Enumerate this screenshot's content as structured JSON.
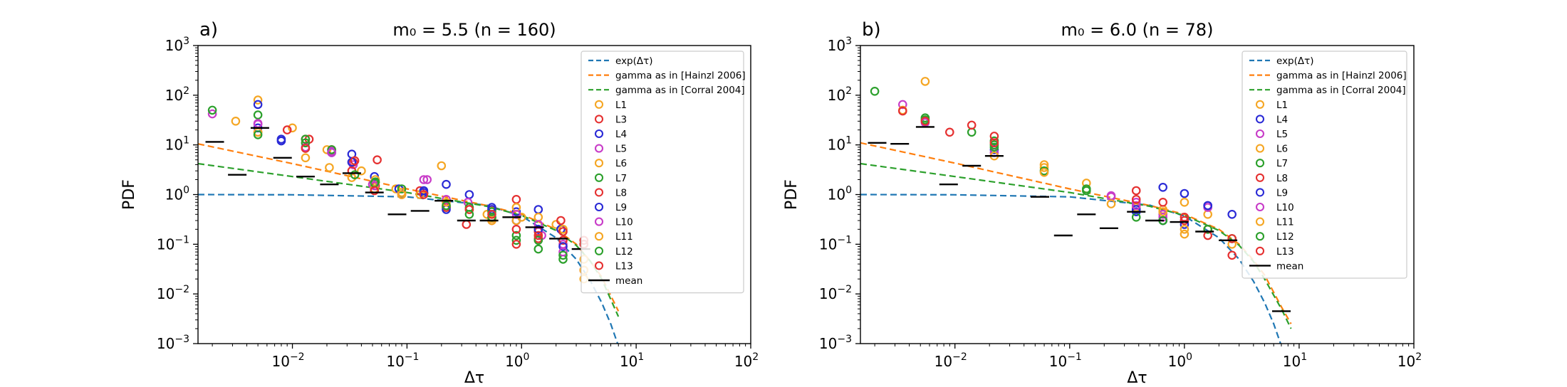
{
  "figure": {
    "panels": [
      {
        "letter": "a)",
        "title": "m₀ = 5.5 (n = 160)"
      },
      {
        "letter": "b)",
        "title": "m₀ = 6.0 (n = 78)"
      }
    ]
  },
  "colors": {
    "exp": "#1f77b4",
    "gamma_hainzl": "#ff7f0e",
    "gamma_corral": "#2ca02c",
    "mean": "#000000",
    "L_colors": {
      "L1": "#f5a623",
      "L3": "#e53030",
      "L4": "#2a2ad6",
      "L5": "#c83cc8",
      "L6": "#f5a623",
      "L7": "#2ca02c",
      "L8": "#e53030",
      "L9": "#2a2ad6",
      "L10": "#c83cc8",
      "L11": "#f5a623",
      "L12": "#2ca02c",
      "L13": "#e53030"
    }
  },
  "chart_data": [
    {
      "type": "scatter",
      "title": "m₀ = 5.5 (n = 160)",
      "panel_letter": "a)",
      "xlabel": "Δτ",
      "ylabel": "PDF",
      "xscale": "log",
      "yscale": "log",
      "xlim": [
        0.0015,
        100
      ],
      "ylim": [
        0.001,
        1000
      ],
      "xticks": [
        {
          "base": "10",
          "exp": "−2",
          "value": 0.01
        },
        {
          "base": "10",
          "exp": "−1",
          "value": 0.1
        },
        {
          "base": "10",
          "exp": "0",
          "value": 1
        },
        {
          "base": "10",
          "exp": "1",
          "value": 10
        },
        {
          "base": "10",
          "exp": "2",
          "value": 100
        }
      ],
      "yticks": [
        {
          "base": "10",
          "exp": "−3",
          "value": 0.001
        },
        {
          "base": "10",
          "exp": "−2",
          "value": 0.01
        },
        {
          "base": "10",
          "exp": "−1",
          "value": 0.1
        },
        {
          "base": "10",
          "exp": "0",
          "value": 1
        },
        {
          "base": "10",
          "exp": "1",
          "value": 10
        },
        {
          "base": "10",
          "exp": "2",
          "value": 100
        },
        {
          "base": "10",
          "exp": "3",
          "value": 1000
        }
      ],
      "grid": false,
      "legend_position": "right",
      "legend": [
        "exp(Δτ)",
        "gamma as in [Hainzl 2006]",
        "gamma as in [Corral 2004]",
        "L1",
        "L3",
        "L4",
        "L5",
        "L6",
        "L7",
        "L8",
        "L9",
        "L10",
        "L11",
        "L12",
        "L13",
        "mean"
      ],
      "curves": [
        {
          "name": "exp(Δτ)",
          "style": "dashed",
          "x": [
            0.0015,
            0.01,
            0.1,
            0.5,
            1,
            2,
            3,
            4,
            5,
            6,
            7
          ],
          "y": [
            1.0,
            0.99,
            0.9,
            0.61,
            0.37,
            0.135,
            0.05,
            0.018,
            0.0067,
            0.0025,
            0.0009
          ]
        },
        {
          "name": "gamma as in [Hainzl 2006]",
          "style": "dashed",
          "x": [
            0.0015,
            0.01,
            0.1,
            0.5,
            1,
            2,
            3,
            4,
            5,
            7
          ],
          "y": [
            10.5,
            4.2,
            1.3,
            0.6,
            0.4,
            0.2,
            0.1,
            0.045,
            0.022,
            0.0045
          ]
        },
        {
          "name": "gamma as in [Corral 2004]",
          "style": "dashed",
          "x": [
            0.0015,
            0.01,
            0.1,
            0.5,
            1,
            2,
            3,
            4,
            5,
            7
          ],
          "y": [
            4.2,
            2.3,
            1.1,
            0.58,
            0.38,
            0.19,
            0.095,
            0.045,
            0.02,
            0.0035
          ]
        }
      ],
      "scatter_series": [
        {
          "name": "L1",
          "x": [
            0.0032,
            0.005,
            0.01,
            0.02,
            0.04,
            0.08,
            0.2,
            0.5,
            1.0,
            2.0,
            3.5
          ],
          "y": [
            30,
            80,
            22,
            8,
            3,
            1.3,
            3.8,
            0.4,
            0.35,
            0.25,
            0.02
          ]
        },
        {
          "name": "L3",
          "x": [
            0.005,
            0.009,
            0.014,
            0.022,
            0.034,
            0.055,
            0.13,
            0.33,
            0.55,
            0.9,
            1.4,
            2.2,
            3.5
          ],
          "y": [
            18,
            20,
            13,
            8,
            4.5,
            5,
            1.2,
            0.25,
            0.5,
            0.8,
            0.18,
            0.3,
            0.03
          ]
        },
        {
          "name": "L4",
          "x": [
            0.005,
            0.008,
            0.033,
            0.052,
            0.085,
            0.14,
            0.22,
            0.35,
            0.55,
            0.9,
            1.4,
            2.2,
            3.5
          ],
          "y": [
            65,
            13,
            6.5,
            2.3,
            1.3,
            1.1,
            1.6,
            1.0,
            0.5,
            0.45,
            0.5,
            0.2,
            0.1
          ]
        },
        {
          "name": "L5",
          "x": [
            0.002,
            0.005,
            0.013,
            0.022,
            0.034,
            0.05,
            0.15,
            0.34,
            0.9,
            1.5,
            2.3
          ],
          "y": [
            42,
            26,
            9,
            7.5,
            4,
            1.6,
            2.0,
            0.7,
            0.3,
            0.15,
            0.1
          ]
        },
        {
          "name": "L6",
          "x": [
            0.013,
            0.021,
            0.053,
            0.09,
            0.13,
            0.22,
            0.35,
            0.55,
            0.9,
            1.4,
            2.3,
            3.5
          ],
          "y": [
            5.5,
            3.5,
            2.0,
            1.1,
            1.0,
            0.6,
            0.5,
            0.33,
            0.55,
            0.35,
            0.2,
            0.03
          ]
        },
        {
          "name": "L7",
          "x": [
            0.002,
            0.005,
            0.013,
            0.022,
            0.053,
            0.09,
            0.22,
            0.35,
            0.55,
            0.9,
            1.4,
            2.3
          ],
          "y": [
            50,
            40,
            11,
            8,
            1.8,
            1.3,
            0.55,
            0.55,
            0.45,
            0.12,
            0.08,
            0.05
          ]
        },
        {
          "name": "L8",
          "x": [
            0.013,
            0.033,
            0.053,
            0.09,
            0.22,
            0.35,
            0.55,
            0.9,
            1.4,
            2.3,
            3.5
          ],
          "y": [
            13,
            3,
            1.5,
            1.0,
            0.55,
            0.5,
            0.3,
            0.1,
            0.13,
            0.12,
            0.1
          ]
        },
        {
          "name": "L9",
          "x": [
            0.005,
            0.008,
            0.022,
            0.033,
            0.14,
            0.22,
            0.55,
            0.9,
            1.4,
            2.3
          ],
          "y": [
            22,
            12,
            7,
            4.5,
            1.2,
            0.5,
            0.55,
            0.3,
            0.2,
            0.09
          ]
        },
        {
          "name": "L10",
          "x": [
            0.005,
            0.022,
            0.052,
            0.14,
            0.22,
            0.55,
            0.9,
            1.4,
            2.3
          ],
          "y": [
            27,
            7,
            1.5,
            2.0,
            0.8,
            0.35,
            0.4,
            0.25,
            0.07
          ]
        },
        {
          "name": "L11",
          "x": [
            0.005,
            0.033,
            0.052,
            0.09,
            0.22,
            0.55,
            0.9,
            2.3,
            3.5
          ],
          "y": [
            18,
            2.2,
            1.3,
            1.0,
            0.7,
            0.3,
            0.3,
            0.2,
            0.05
          ]
        },
        {
          "name": "L12",
          "x": [
            0.005,
            0.013,
            0.035,
            0.052,
            0.22,
            0.35,
            0.55,
            0.9,
            1.4,
            2.3
          ],
          "y": [
            16,
            13,
            2.5,
            1.7,
            0.6,
            0.4,
            0.35,
            0.15,
            0.12,
            0.06
          ]
        },
        {
          "name": "L13",
          "x": [
            0.013,
            0.035,
            0.052,
            0.14,
            0.55,
            0.9,
            1.4,
            2.3,
            3.5
          ],
          "y": [
            8.5,
            4.8,
            1.2,
            1.0,
            0.4,
            0.2,
            0.15,
            0.18,
            0.12
          ]
        }
      ],
      "mean": {
        "name": "mean",
        "x": [
          0.0021,
          0.0033,
          0.0052,
          0.0082,
          0.013,
          0.021,
          0.033,
          0.052,
          0.082,
          0.13,
          0.21,
          0.33,
          0.52,
          0.82,
          1.3,
          2.1,
          3.3
        ],
        "y": [
          11.5,
          2.5,
          22,
          5.5,
          2.3,
          1.6,
          2.7,
          1.1,
          0.4,
          0.47,
          0.75,
          0.3,
          0.3,
          0.35,
          0.22,
          0.13,
          0.08
        ]
      }
    },
    {
      "type": "scatter",
      "title": "m₀ = 6.0 (n = 78)",
      "panel_letter": "b)",
      "xlabel": "Δτ",
      "ylabel": "PDF",
      "xscale": "log",
      "yscale": "log",
      "xlim": [
        0.0015,
        100
      ],
      "ylim": [
        0.001,
        1000
      ],
      "xticks": [
        {
          "base": "10",
          "exp": "−2",
          "value": 0.01
        },
        {
          "base": "10",
          "exp": "−1",
          "value": 0.1
        },
        {
          "base": "10",
          "exp": "0",
          "value": 1
        },
        {
          "base": "10",
          "exp": "1",
          "value": 10
        },
        {
          "base": "10",
          "exp": "2",
          "value": 100
        }
      ],
      "yticks": [
        {
          "base": "10",
          "exp": "−3",
          "value": 0.001
        },
        {
          "base": "10",
          "exp": "−2",
          "value": 0.01
        },
        {
          "base": "10",
          "exp": "−1",
          "value": 0.1
        },
        {
          "base": "10",
          "exp": "0",
          "value": 1
        },
        {
          "base": "10",
          "exp": "1",
          "value": 10
        },
        {
          "base": "10",
          "exp": "2",
          "value": 100
        },
        {
          "base": "10",
          "exp": "3",
          "value": 1000
        }
      ],
      "grid": false,
      "legend_position": "right",
      "legend": [
        "exp(Δτ)",
        "gamma as in [Hainzl 2006]",
        "gamma as in [Corral 2004]",
        "L1",
        "L4",
        "L5",
        "L6",
        "L7",
        "L8",
        "L9",
        "L10",
        "L11",
        "L12",
        "L13",
        "mean"
      ],
      "curves": [
        {
          "name": "exp(Δτ)",
          "style": "dashed",
          "x": [
            0.0015,
            0.01,
            0.1,
            0.5,
            1,
            2,
            3,
            4,
            5,
            6,
            7
          ],
          "y": [
            1.0,
            0.99,
            0.9,
            0.61,
            0.37,
            0.135,
            0.05,
            0.018,
            0.0067,
            0.0025,
            0.0009
          ]
        },
        {
          "name": "gamma as in [Hainzl 2006]",
          "style": "dashed",
          "x": [
            0.0015,
            0.01,
            0.1,
            0.5,
            1,
            2,
            3,
            4,
            5,
            7,
            8.5
          ],
          "y": [
            11,
            4.3,
            1.3,
            0.6,
            0.4,
            0.2,
            0.1,
            0.048,
            0.024,
            0.0055,
            0.0025
          ]
        },
        {
          "name": "gamma as in [Corral 2004]",
          "style": "dashed",
          "x": [
            0.0015,
            0.01,
            0.1,
            0.5,
            1,
            2,
            3,
            4,
            5,
            7,
            8.5
          ],
          "y": [
            4.2,
            2.3,
            1.1,
            0.58,
            0.38,
            0.19,
            0.095,
            0.045,
            0.02,
            0.005,
            0.002
          ]
        }
      ],
      "scatter_series": [
        {
          "name": "L1",
          "x": [
            0.0055,
            0.06,
            0.38,
            0.65,
            1.0,
            1.6
          ],
          "y": [
            190,
            4.0,
            0.55,
            0.5,
            0.16,
            0.4
          ]
        },
        {
          "name": "L4",
          "x": [
            0.38,
            0.65,
            1.0,
            1.6,
            2.6
          ],
          "y": [
            0.45,
            1.4,
            1.05,
            0.6,
            0.4
          ]
        },
        {
          "name": "L5",
          "x": [
            0.0035,
            0.23,
            0.38,
            0.65,
            1.0,
            1.6
          ],
          "y": [
            65,
            0.95,
            0.7,
            0.4,
            0.3,
            0.55
          ]
        },
        {
          "name": "L6",
          "x": [
            0.0035,
            0.06,
            0.14,
            0.38,
            1.0
          ],
          "y": [
            50,
            3.5,
            1.7,
            0.5,
            0.7
          ]
        },
        {
          "name": "L7",
          "x": [
            0.002,
            0.0055,
            0.014,
            0.022,
            0.06,
            0.14,
            0.38,
            0.65,
            1.6
          ],
          "y": [
            120,
            35,
            18,
            12,
            3.0,
            1.3,
            0.35,
            0.3,
            0.2
          ]
        },
        {
          "name": "L8",
          "x": [
            0.0035,
            0.009,
            0.014,
            0.022,
            0.38,
            0.65,
            1.0,
            1.6,
            2.6
          ],
          "y": [
            48,
            18,
            25,
            15,
            1.2,
            0.7,
            0.3,
            0.2,
            0.06
          ]
        },
        {
          "name": "L9",
          "x": [
            0.022,
            0.38,
            0.65,
            1.0,
            1.6
          ],
          "y": [
            8,
            0.5,
            0.3,
            0.25,
            0.6
          ]
        },
        {
          "name": "L10",
          "x": [
            0.0055,
            0.022,
            0.23,
            0.38,
            0.65
          ],
          "y": [
            28,
            7,
            0.9,
            0.6,
            0.35
          ]
        },
        {
          "name": "L11",
          "x": [
            0.022,
            0.06,
            0.23,
            0.65,
            1.0,
            2.6
          ],
          "y": [
            6,
            2.8,
            0.65,
            0.45,
            0.2,
            0.1
          ]
        },
        {
          "name": "L12",
          "x": [
            0.0055,
            0.022,
            0.022,
            0.14,
            0.65,
            1.6,
            2.6
          ],
          "y": [
            32,
            9,
            10,
            1.2,
            0.3,
            0.2,
            0.13
          ]
        },
        {
          "name": "L13",
          "x": [
            0.0055,
            0.022,
            0.38,
            1.0,
            1.6,
            2.6
          ],
          "y": [
            30,
            11,
            0.8,
            0.35,
            0.15,
            0.13
          ]
        }
      ],
      "mean": {
        "name": "mean",
        "x": [
          0.0021,
          0.0033,
          0.0055,
          0.0088,
          0.014,
          0.022,
          0.055,
          0.088,
          0.14,
          0.22,
          0.38,
          0.55,
          0.9,
          1.5,
          2.4,
          7.0
        ],
        "y": [
          11,
          10.5,
          23,
          1.6,
          3.8,
          6,
          0.9,
          0.15,
          0.4,
          0.21,
          0.45,
          0.3,
          0.28,
          0.18,
          0.12,
          0.0045
        ]
      }
    }
  ]
}
